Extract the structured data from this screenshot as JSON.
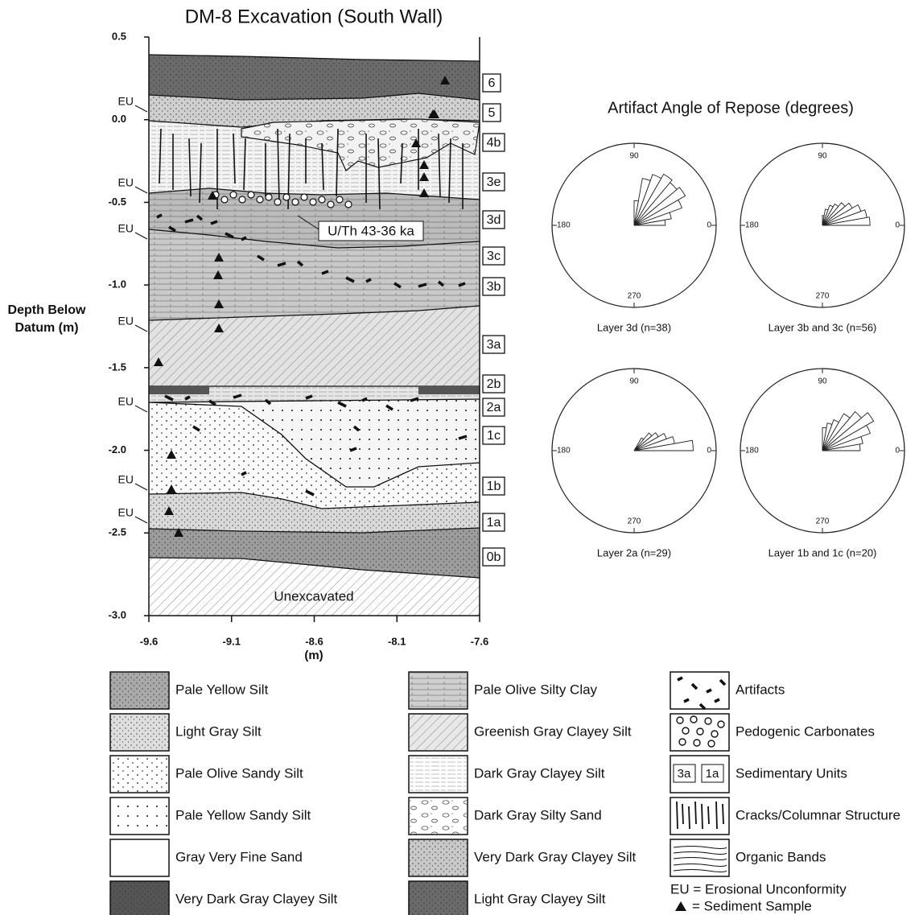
{
  "section": {
    "title": "DM-8 Excavation (South Wall)",
    "y_axis_label": [
      "Depth Below",
      "Datum (m)"
    ],
    "x_axis_label": "(m)",
    "ylim": [
      0.5,
      -3.0
    ],
    "yticks": [
      0.5,
      {
        "value": 0,
        "label": "0.0"
      },
      -0.5,
      {
        "value": -1,
        "label": "-1.0"
      },
      -1.5,
      {
        "value": -2,
        "label": "-2.0"
      },
      -2.5,
      {
        "value": -3,
        "label": "-3.0"
      }
    ],
    "xlim": [
      -9.6,
      -7.6
    ],
    "xticks": [
      -9.6,
      -9.1,
      -8.6,
      -8.1,
      -7.6
    ],
    "units": [
      "6",
      "5",
      "4b",
      "3e",
      "3d",
      "3c",
      "3b",
      "3a",
      "2b",
      "2a",
      "1c",
      "1b",
      "1a",
      "0b"
    ],
    "eu_labels": [
      "EU",
      "EU",
      "EU",
      "EU",
      "EU",
      "EU",
      "EU"
    ],
    "annotation": "U/Th 43-36 ka",
    "unexcavated": "Unexcavated"
  },
  "rose": {
    "title": "Artifact Angle of Repose (degrees)",
    "direction_labels": [
      "90",
      "180",
      "0",
      "270"
    ],
    "panels": [
      {
        "caption": "Layer 3d (n=38)"
      },
      {
        "caption": "Layer 3b and 3c (n=56)"
      },
      {
        "caption": "Layer 2a (n=29)"
      },
      {
        "caption": "Layer 1b and 1c (n=20)"
      }
    ]
  },
  "legend": [
    "Pale Yellow Silt",
    "Light Gray Silt",
    "Pale Olive Sandy Silt",
    "Pale Yellow Sandy Silt",
    "Gray Very Fine Sand",
    "Very Dark Gray Clayey Silt",
    "Pale Olive Silty Clay",
    "Greenish Gray Clayey Silt",
    "Dark Gray Clayey Silt",
    "Dark Gray Silty Sand",
    "Very Dark Gray Clayey Silt",
    "Light Gray Clayey Silt",
    "Artifacts",
    "Pedogenic Carbonates",
    "Sedimentary Units",
    "Cracks/Columnar Structure",
    "Organic Bands"
  ],
  "legend_units": [
    "3a",
    "1a"
  ],
  "notes": [
    "EU = Erosional Unconformity",
    "= Sediment Sample"
  ]
}
